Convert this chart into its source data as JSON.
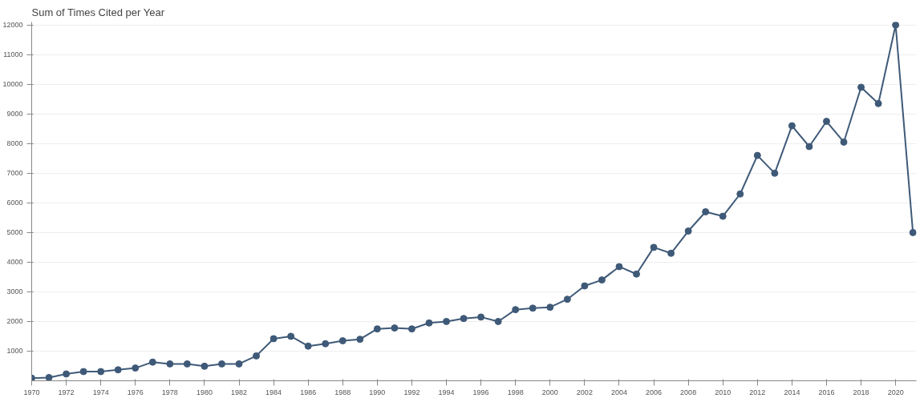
{
  "chart_data": {
    "type": "line",
    "title": "Sum of Times Cited per Year",
    "x": [
      1970,
      1971,
      1972,
      1973,
      1974,
      1975,
      1976,
      1977,
      1978,
      1979,
      1980,
      1981,
      1982,
      1983,
      1984,
      1985,
      1986,
      1987,
      1988,
      1989,
      1990,
      1991,
      1992,
      1993,
      1994,
      1995,
      1996,
      1997,
      1998,
      1999,
      2000,
      2001,
      2002,
      2003,
      2004,
      2005,
      2006,
      2007,
      2008,
      2009,
      2010,
      2011,
      2012,
      2013,
      2014,
      2015,
      2016,
      2017,
      2018,
      2019,
      2020,
      2021
    ],
    "series": [
      {
        "color": "#3f5a78",
        "values": [
          90,
          110,
          230,
          310,
          310,
          370,
          430,
          630,
          570,
          570,
          490,
          570,
          570,
          840,
          1420,
          1500,
          1170,
          1250,
          1350,
          1400,
          1750,
          1780,
          1750,
          1950,
          2000,
          2100,
          2150,
          2000,
          2400,
          2450,
          2480,
          2750,
          3200,
          3400,
          3850,
          3600,
          4500,
          4300,
          5050,
          5700,
          5550,
          6300,
          7600,
          7000,
          8600,
          7900,
          8750,
          8050,
          9900,
          9350,
          12000,
          5000
        ]
      }
    ],
    "xlim": [
      1970,
      2021.2
    ],
    "ylim": [
      0,
      12100
    ],
    "xticks": [
      1970,
      1972,
      1974,
      1976,
      1978,
      1980,
      1982,
      1984,
      1986,
      1988,
      1990,
      1992,
      1994,
      1996,
      1998,
      2000,
      2002,
      2004,
      2006,
      2008,
      2010,
      2012,
      2014,
      2016,
      2018,
      2020
    ],
    "yticks": [
      1000,
      2000,
      3000,
      4000,
      5000,
      6000,
      7000,
      8000,
      9000,
      10000,
      11000,
      12000
    ],
    "grid": "y",
    "marker": "circle",
    "line_style": "solid"
  }
}
